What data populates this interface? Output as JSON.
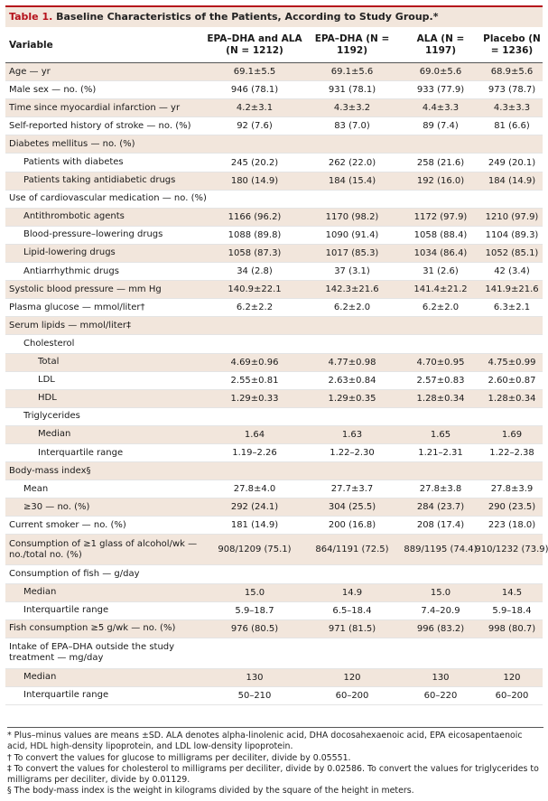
{
  "title": {
    "label": "Table 1.",
    "text": "Baseline Characteristics of the Patients, According to Study Group.*"
  },
  "header": {
    "variable": "Variable",
    "groups": [
      "EPA–DHA and ALA (N = 1212)",
      "EPA–DHA (N = 1192)",
      "ALA (N = 1197)",
      "Placebo (N = 1236)"
    ]
  },
  "rows": [
    {
      "label": "Age — yr",
      "indent": 0,
      "shade": true,
      "values": [
        "69.1±5.5",
        "69.1±5.6",
        "69.0±5.6",
        "68.9±5.6"
      ]
    },
    {
      "label": "Male sex — no. (%)",
      "indent": 0,
      "shade": false,
      "values": [
        "946 (78.1)",
        "931 (78.1)",
        "933 (77.9)",
        "973 (78.7)"
      ]
    },
    {
      "label": "Time since myocardial infarction — yr",
      "indent": 0,
      "shade": true,
      "values": [
        "4.2±3.1",
        "4.3±3.2",
        "4.4±3.3",
        "4.3±3.3"
      ]
    },
    {
      "label": "Self-reported history of stroke — no. (%)",
      "indent": 0,
      "shade": false,
      "values": [
        "92 (7.6)",
        "83 (7.0)",
        "89 (7.4)",
        "81 (6.6)"
      ]
    },
    {
      "label": "Diabetes mellitus — no. (%)",
      "indent": 0,
      "shade": true,
      "values": [
        "",
        "",
        "",
        ""
      ]
    },
    {
      "label": "Patients with diabetes",
      "indent": 1,
      "shade": false,
      "values": [
        "245 (20.2)",
        "262 (22.0)",
        "258 (21.6)",
        "249 (20.1)"
      ]
    },
    {
      "label": "Patients taking antidiabetic drugs",
      "indent": 1,
      "shade": true,
      "values": [
        "180 (14.9)",
        "184 (15.4)",
        "192 (16.0)",
        "184 (14.9)"
      ]
    },
    {
      "label": "Use of cardiovascular medication — no. (%)",
      "indent": 0,
      "shade": false,
      "values": [
        "",
        "",
        "",
        ""
      ]
    },
    {
      "label": "Antithrombotic agents",
      "indent": 1,
      "shade": true,
      "values": [
        "1166 (96.2)",
        "1170 (98.2)",
        "1172 (97.9)",
        "1210 (97.9)"
      ]
    },
    {
      "label": "Blood-pressure–lowering drugs",
      "indent": 1,
      "shade": false,
      "values": [
        "1088 (89.8)",
        "1090 (91.4)",
        "1058 (88.4)",
        "1104 (89.3)"
      ]
    },
    {
      "label": "Lipid-lowering drugs",
      "indent": 1,
      "shade": true,
      "values": [
        "1058 (87.3)",
        "1017 (85.3)",
        "1034 (86.4)",
        "1052 (85.1)"
      ]
    },
    {
      "label": "Antiarrhythmic drugs",
      "indent": 1,
      "shade": false,
      "values": [
        "34 (2.8)",
        "37 (3.1)",
        "31 (2.6)",
        "42 (3.4)"
      ]
    },
    {
      "label": "Systolic blood pressure — mm Hg",
      "indent": 0,
      "shade": true,
      "values": [
        "140.9±22.1",
        "142.3±21.6",
        "141.4±21.2",
        "141.9±21.6"
      ]
    },
    {
      "label": "Plasma glucose — mmol/liter†",
      "indent": 0,
      "shade": false,
      "values": [
        "6.2±2.2",
        "6.2±2.0",
        "6.2±2.0",
        "6.3±2.1"
      ]
    },
    {
      "label": "Serum lipids — mmol/liter‡",
      "indent": 0,
      "shade": true,
      "values": [
        "",
        "",
        "",
        ""
      ]
    },
    {
      "label": "Cholesterol",
      "indent": 1,
      "shade": false,
      "values": [
        "",
        "",
        "",
        ""
      ]
    },
    {
      "label": "Total",
      "indent": 2,
      "shade": true,
      "values": [
        "4.69±0.96",
        "4.77±0.98",
        "4.70±0.95",
        "4.75±0.99"
      ]
    },
    {
      "label": "LDL",
      "indent": 2,
      "shade": false,
      "values": [
        "2.55±0.81",
        "2.63±0.84",
        "2.57±0.83",
        "2.60±0.87"
      ]
    },
    {
      "label": "HDL",
      "indent": 2,
      "shade": true,
      "values": [
        "1.29±0.33",
        "1.29±0.35",
        "1.28±0.34",
        "1.28±0.34"
      ]
    },
    {
      "label": "Triglycerides",
      "indent": 1,
      "shade": false,
      "values": [
        "",
        "",
        "",
        ""
      ]
    },
    {
      "label": "Median",
      "indent": 2,
      "shade": true,
      "values": [
        "1.64",
        "1.63",
        "1.65",
        "1.69"
      ]
    },
    {
      "label": "Interquartile range",
      "indent": 2,
      "shade": false,
      "values": [
        "1.19–2.26",
        "1.22–2.30",
        "1.21–2.31",
        "1.22–2.38"
      ]
    },
    {
      "label": "Body-mass index§",
      "indent": 0,
      "shade": true,
      "values": [
        "",
        "",
        "",
        ""
      ]
    },
    {
      "label": "Mean",
      "indent": 1,
      "shade": false,
      "values": [
        "27.8±4.0",
        "27.7±3.7",
        "27.8±3.8",
        "27.8±3.9"
      ]
    },
    {
      "label": "≥30 — no. (%)",
      "indent": 1,
      "shade": true,
      "values": [
        "292 (24.1)",
        "304 (25.5)",
        "284 (23.7)",
        "290 (23.5)"
      ]
    },
    {
      "label": "Current smoker — no. (%)",
      "indent": 0,
      "shade": false,
      "values": [
        "181 (14.9)",
        "200 (16.8)",
        "208 (17.4)",
        "223 (18.0)"
      ]
    },
    {
      "label": "Consumption of ≥1 glass of alcohol/wk — no./total no. (%)",
      "indent": 0,
      "shade": true,
      "tall": true,
      "values": [
        "908/1209 (75.1)",
        "864/1191 (72.5)",
        "889/1195 (74.4)",
        "910/1232 (73.9)"
      ]
    },
    {
      "label": "Consumption of fish — g/day",
      "indent": 0,
      "shade": false,
      "values": [
        "",
        "",
        "",
        ""
      ]
    },
    {
      "label": "Median",
      "indent": 1,
      "shade": true,
      "values": [
        "15.0",
        "14.9",
        "15.0",
        "14.5"
      ]
    },
    {
      "label": "Interquartile range",
      "indent": 1,
      "shade": false,
      "values": [
        "5.9–18.7",
        "6.5–18.4",
        "7.4–20.9",
        "5.9–18.4"
      ]
    },
    {
      "label": "Fish consumption ≥5 g/wk — no. (%)",
      "indent": 0,
      "shade": true,
      "values": [
        "976 (80.5)",
        "971 (81.5)",
        "996 (83.2)",
        "998 (80.7)"
      ]
    },
    {
      "label": "Intake of EPA–DHA outside the study treatment — mg/day",
      "indent": 0,
      "shade": false,
      "tall": true,
      "values": [
        "",
        "",
        "",
        ""
      ]
    },
    {
      "label": "Median",
      "indent": 1,
      "shade": true,
      "values": [
        "130",
        "120",
        "130",
        "120"
      ]
    },
    {
      "label": "Interquartile range",
      "indent": 1,
      "shade": false,
      "values": [
        "50–210",
        "60–200",
        "60–220",
        "60–200"
      ]
    }
  ],
  "footnotes": [
    "* Plus–minus values are means ±SD. ALA denotes alpha-linolenic acid, DHA docosahexaenoic acid, EPA eicosapentaenoic acid, HDL high-density lipoprotein, and LDL low-density lipoprotein.",
    "† To convert the values for glucose to milligrams per deciliter, divide by 0.05551.",
    "‡ To convert the values for cholesterol to milligrams per deciliter, divide by 0.02586. To convert the values for triglycerides to milligrams per deciliter, divide by 0.01129.",
    "§ The body-mass index is the weight in kilograms divided by the square of the height in meters."
  ]
}
